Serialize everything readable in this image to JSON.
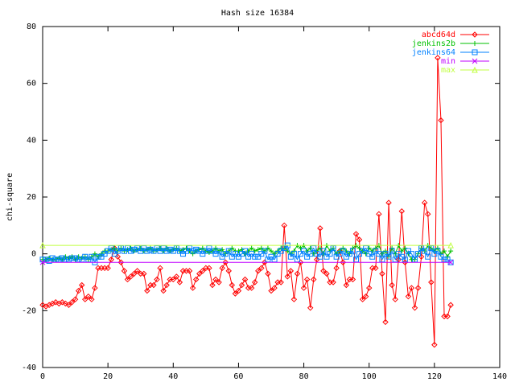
{
  "chart_data": {
    "type": "line",
    "title": "Hash size 16384",
    "ylabel": "chi-square",
    "xlim": [
      0,
      140
    ],
    "xticks": [
      0,
      20,
      40,
      60,
      80,
      100,
      120,
      140
    ],
    "ylim": [
      -40,
      80
    ],
    "yticks": [
      -40,
      -20,
      0,
      20,
      40,
      60,
      80
    ],
    "legend": "top-right",
    "x": [
      0,
      1,
      2,
      3,
      4,
      5,
      6,
      7,
      8,
      9,
      10,
      11,
      12,
      13,
      14,
      15,
      16,
      17,
      18,
      19,
      20,
      21,
      22,
      23,
      24,
      25,
      26,
      27,
      28,
      29,
      30,
      31,
      32,
      33,
      34,
      35,
      36,
      37,
      38,
      39,
      40,
      41,
      42,
      43,
      44,
      45,
      46,
      47,
      48,
      49,
      50,
      51,
      52,
      53,
      54,
      55,
      56,
      57,
      58,
      59,
      60,
      61,
      62,
      63,
      64,
      65,
      66,
      67,
      68,
      69,
      70,
      71,
      72,
      73,
      74,
      75,
      76,
      77,
      78,
      79,
      80,
      81,
      82,
      83,
      84,
      85,
      86,
      87,
      88,
      89,
      90,
      91,
      92,
      93,
      94,
      95,
      96,
      97,
      98,
      99,
      100,
      101,
      102,
      103,
      104,
      105,
      106,
      107,
      108,
      109,
      110,
      111,
      112,
      113,
      114,
      115,
      116,
      117,
      118,
      119,
      120,
      121,
      122,
      123,
      124,
      125
    ],
    "series": [
      {
        "name": "abcd64d",
        "color": "#ff0000",
        "marker": "diamond",
        "values": [
          -18,
          -18.5,
          -18,
          -17.5,
          -17,
          -17.5,
          -17,
          -17.5,
          -18,
          -17,
          -16,
          -13,
          -11,
          -16,
          -15,
          -16,
          -12,
          -5,
          -5,
          -5,
          -5,
          -2,
          2,
          -1,
          -3,
          -6,
          -9,
          -8,
          -7,
          -6,
          -7,
          -7,
          -13,
          -11,
          -11,
          -9,
          -5,
          -13,
          -11,
          -9,
          -9,
          -8,
          -10,
          -6,
          -6,
          -6,
          -12,
          -9,
          -7,
          -6,
          -5,
          -5,
          -11,
          -9,
          -10,
          -5,
          -3,
          -6,
          -11,
          -14,
          -13,
          -11,
          -9,
          -12,
          -12,
          -10,
          -6,
          -5,
          -3,
          -7,
          -13,
          -12,
          -10,
          -10,
          10,
          -8,
          -6,
          -16,
          -7,
          -3,
          -12,
          -9,
          -19,
          -9,
          -2,
          9,
          -6,
          -7,
          -10,
          -10,
          -5,
          1,
          -3,
          -11,
          -9,
          -9,
          7,
          5,
          -16,
          -15,
          -12,
          -5,
          -5,
          14,
          -7,
          -24,
          18,
          -11,
          -16,
          -2,
          15,
          -3,
          -15,
          -12,
          -19,
          -12,
          -1,
          18,
          14,
          -10,
          -32,
          69,
          47,
          -22,
          -22,
          -18
        ]
      },
      {
        "name": "jenkins2b",
        "color": "#00c000",
        "marker": "plus",
        "values": [
          -2,
          -2,
          -1.5,
          -2,
          -2,
          -1.5,
          -2,
          -1,
          -1.5,
          -1,
          -2,
          -1,
          -1.5,
          -1,
          -2,
          -1,
          0,
          -1,
          0,
          1,
          1,
          1.5,
          2,
          1,
          2,
          1,
          1.5,
          2,
          1,
          1.5,
          2,
          1,
          1.5,
          2,
          1,
          1.5,
          2,
          1,
          2,
          1,
          1.5,
          2,
          1,
          1.5,
          2,
          1,
          0,
          1,
          1.5,
          2,
          1,
          0.5,
          1,
          2,
          1,
          1.5,
          0,
          1,
          2,
          1,
          1,
          1.5,
          0,
          1,
          2,
          1,
          1.5,
          2,
          1,
          2,
          1,
          0,
          1,
          2,
          2,
          1,
          0,
          1,
          3,
          2,
          3,
          1,
          2,
          0,
          1,
          2,
          0,
          3,
          1,
          2,
          0,
          1,
          2,
          1,
          0,
          2,
          3,
          2,
          1,
          0,
          2,
          1,
          2,
          3,
          0,
          1,
          -1,
          2,
          0,
          3,
          1,
          2,
          0,
          -2,
          -2,
          0,
          2,
          1,
          3,
          2,
          1,
          2,
          0,
          1,
          -1,
          1
        ]
      },
      {
        "name": "jenkins64",
        "color": "#0080ff",
        "marker": "square",
        "values": [
          -2,
          -2,
          -2.5,
          -1.5,
          -2,
          -2,
          -1.5,
          -2,
          -2,
          -1.5,
          -1.5,
          -2,
          -2,
          -1,
          -2,
          -1,
          -3,
          -1,
          -1,
          0,
          1,
          2,
          0,
          1,
          2,
          1,
          2,
          1,
          1.5,
          2,
          1,
          2,
          1,
          1.5,
          1,
          2,
          1,
          2,
          1,
          1.5,
          1,
          2,
          1,
          0,
          1,
          2,
          1,
          1.5,
          1,
          0,
          1,
          2,
          1,
          0,
          1,
          -1,
          0,
          1,
          -1,
          0,
          -1,
          0,
          1,
          -1,
          0,
          -1,
          -1,
          0,
          1,
          -2,
          -1,
          -2,
          0,
          1,
          2,
          3,
          -1,
          0,
          -2,
          0,
          1,
          -1,
          0,
          2,
          0,
          -1,
          1,
          -1,
          0,
          2,
          -1,
          0,
          1,
          -1,
          0,
          1,
          -2,
          0,
          1,
          2,
          0,
          -1,
          1,
          0,
          -2,
          0,
          -1,
          1,
          -2,
          0,
          -1,
          -2,
          1,
          0,
          -2,
          0,
          2,
          1,
          -1,
          2,
          0,
          1,
          -1,
          -2,
          -2,
          -3
        ]
      },
      {
        "name": "min",
        "color": "#c000ff",
        "marker": "cross",
        "x": [
          0,
          125
        ],
        "values": [
          -3,
          -3
        ]
      },
      {
        "name": "max",
        "color": "#c0ff40",
        "marker": "triangle",
        "x": [
          0,
          125
        ],
        "values": [
          3,
          3
        ]
      }
    ]
  }
}
